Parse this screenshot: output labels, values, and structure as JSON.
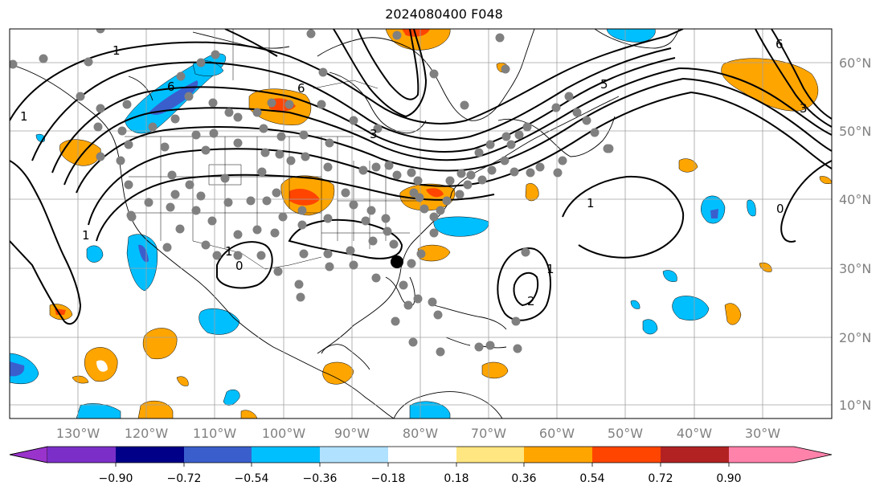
{
  "title": "2024080400 F048",
  "map": {
    "lon_labels": [
      "130°W",
      "120°W",
      "110°W",
      "100°W",
      "90°W",
      "80°W",
      "70°W",
      "60°W",
      "50°W",
      "40°W",
      "30°W"
    ],
    "lat_labels": [
      "60°N",
      "50°N",
      "40°N",
      "30°N",
      "20°N",
      "10°N"
    ],
    "contour_labels": [
      "1",
      "6",
      "6",
      "1",
      "3",
      "1",
      "1",
      "0",
      "2",
      "1",
      "0",
      "6",
      "5",
      "3",
      "1"
    ]
  },
  "colorbar": {
    "tick_labels": [
      "−0.90",
      "−0.72",
      "−0.54",
      "−0.36",
      "−0.18",
      "0.18",
      "0.36",
      "0.54",
      "0.72",
      "0.90"
    ],
    "colors": {
      "under": "#9933cc",
      "b1": "#7b2fc8",
      "b2": "#000088",
      "b3": "#3a5fcd",
      "b4": "#00bfff",
      "b5": "#b0e2ff",
      "b6": "#ffffff",
      "b7": "#ffe680",
      "b8": "#ffa500",
      "b9": "#ff4500",
      "b10": "#b22222",
      "over": "#ff82ab"
    }
  },
  "colors": {
    "ocean": "#ffffff",
    "grid": "#a0a0a0",
    "station": "#808080",
    "contour": "#000000"
  }
}
